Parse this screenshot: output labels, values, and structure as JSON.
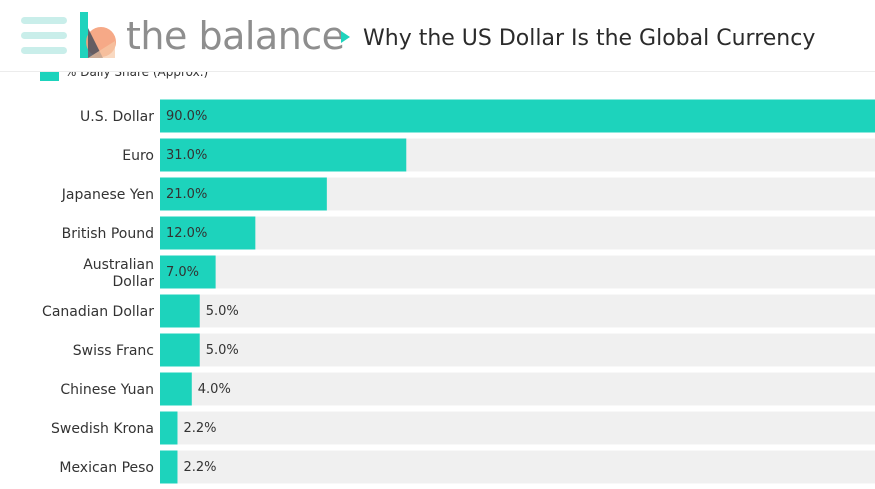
{
  "header": {
    "brand": "the balance",
    "title": "Why the US Dollar Is the Global Currency",
    "menu_icon": "hamburger-menu-icon",
    "logo_icon": "the-balance-logo-icon",
    "accent_color": "#1fd3bd"
  },
  "chart_data": {
    "type": "bar",
    "orientation": "horizontal",
    "legend": "% Daily Share (Approx.)",
    "legend_position": "top-left",
    "categories": [
      "U.S. Dollar",
      "Euro",
      "Japanese Yen",
      "British Pound",
      "Australian Dollar",
      "Canadian Dollar",
      "Swiss Franc",
      "Chinese Yuan",
      "Swedish Krona",
      "Mexican Peso"
    ],
    "values": [
      90.0,
      31.0,
      21.0,
      12.0,
      7.0,
      5.0,
      5.0,
      4.0,
      2.2,
      2.2
    ],
    "value_labels": [
      "90.0%",
      "31.0%",
      "21.0%",
      "12.0%",
      "7.0%",
      "5.0%",
      "5.0%",
      "4.0%",
      "2.2%",
      "2.2%"
    ],
    "xlim": [
      0,
      90
    ],
    "bar_color": "#1dd3bc",
    "track_color": "#f0f0f0"
  }
}
